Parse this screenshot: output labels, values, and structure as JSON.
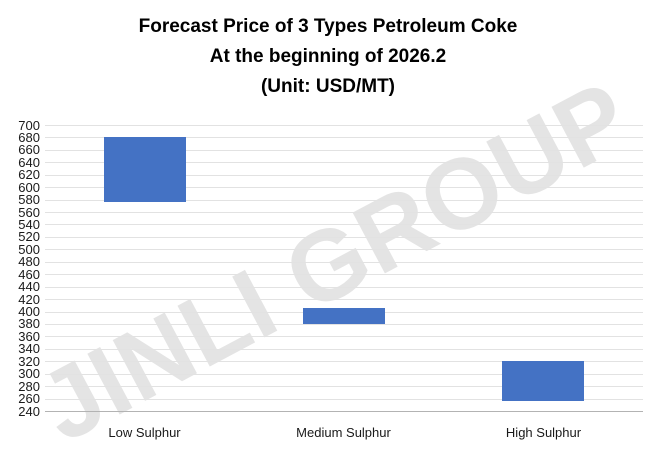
{
  "title": {
    "line1": "Forecast Price of 3 Types Petroleum Coke",
    "line2": "At the beginning of 2026.2",
    "line3": "(Unit: USD/MT)"
  },
  "watermark": "JINLI GROUP",
  "colors": {
    "bar": "#4472C4",
    "gridline": "#e2e2e2",
    "axis_line": "#b3b3b3",
    "watermark": "#e4e4e4",
    "text": "#000000"
  },
  "chart_data": {
    "type": "bar",
    "subtype": "floating-range-bars",
    "title": "Forecast Price of 3 Types Petroleum Coke At the beginning of 2026.2 (Unit: USD/MT)",
    "categories": [
      "Low Sulphur",
      "Medium Sulphur",
      "High Sulphur"
    ],
    "ranges": [
      {
        "category": "Low Sulphur",
        "low": 575,
        "high": 680
      },
      {
        "category": "Medium Sulphur",
        "low": 380,
        "high": 405
      },
      {
        "category": "High Sulphur",
        "low": 255,
        "high": 320
      }
    ],
    "unit": "USD/MT",
    "ylim": [
      240,
      700
    ],
    "ytick_step": 20,
    "grid": true,
    "legend": "none"
  }
}
